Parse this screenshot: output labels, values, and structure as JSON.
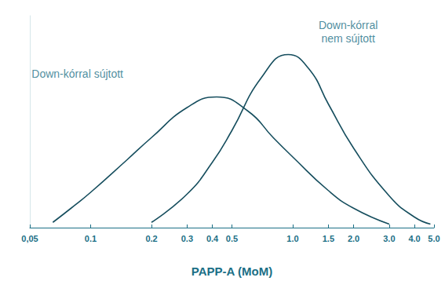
{
  "chart_data": {
    "type": "line",
    "x_label": "PAPP-A (MoM)",
    "log": "x",
    "grid": false,
    "tick_labels": "x",
    "xlim": [
      0.05,
      5.0
    ],
    "xticks": [
      {
        "value": 0.05,
        "label": "0,05"
      },
      0.1,
      0.2,
      0.3,
      0.4,
      0.5,
      {
        "value": 1.0,
        "label": "1.0"
      },
      1.5,
      {
        "value": 2.0,
        "label": "2.0"
      },
      {
        "value": 3.0,
        "label": "3.0"
      },
      {
        "value": 4.0,
        "label": "4.0"
      },
      {
        "value": 5.0,
        "label": "5.0"
      }
    ],
    "ylim": [
      0,
      1.2
    ],
    "series": [
      {
        "color": "#164e5e",
        "x": [
          0.065,
          0.08,
          0.1,
          0.15,
          0.2,
          0.3,
          0.42,
          0.6,
          0.8,
          1.0,
          1.5,
          2.0,
          3.0
        ],
        "values": [
          0.03,
          0.11,
          0.2,
          0.38,
          0.51,
          0.68,
          0.74,
          0.66,
          0.51,
          0.4,
          0.21,
          0.11,
          0.02
        ]
      },
      {
        "color": "#164e5e",
        "x": [
          0.2,
          0.3,
          0.4,
          0.5,
          0.7,
          0.95,
          1.2,
          1.5,
          2.0,
          3.0,
          4.0,
          4.8
        ],
        "values": [
          0.03,
          0.19,
          0.37,
          0.55,
          0.85,
          0.98,
          0.9,
          0.7,
          0.45,
          0.18,
          0.06,
          0.02
        ]
      }
    ],
    "annotations": [
      {
        "text": "Down-kórral sújtott",
        "x": 0.086,
        "y": 0.87
      },
      {
        "text": "Down-kórral\nnem sújtott",
        "x": 1.88,
        "y": 1.11
      }
    ]
  }
}
